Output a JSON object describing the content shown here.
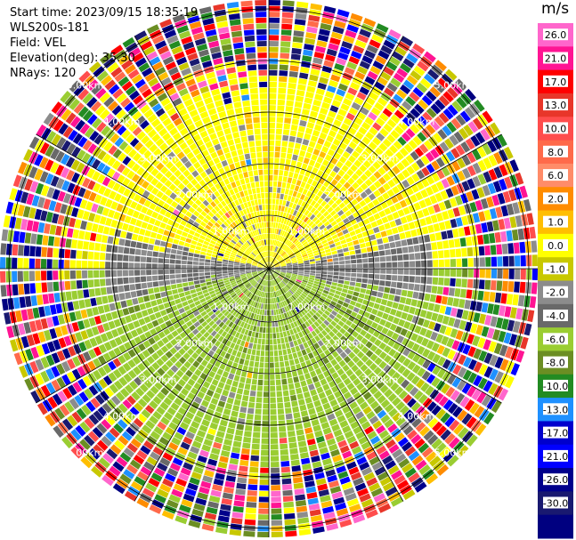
{
  "header": {
    "start_time": "Start time: 2023/09/15 18:35:19",
    "instrument": "WLS200s-181",
    "field": "Field: VEL",
    "elevation": "Elevation(deg): 35.30",
    "nrays": "NRays: 120"
  },
  "chart_data": {
    "type": "heatmap",
    "projection": "polar",
    "field": "VEL",
    "nrays": 120,
    "range_ring_labels": [
      "1.00km",
      "2.00km",
      "3.00km",
      "4.00km",
      "5.00km"
    ],
    "colorbar": {
      "unit": "m/s",
      "ticks": [
        "26.0",
        "21.0",
        "17.0",
        "13.0",
        "10.0",
        "8.0",
        "6.0",
        "2.0",
        "1.0",
        "0.0",
        "-1.0",
        "-2.0",
        "-4.0",
        "-6.0",
        "-8.0",
        "-10.0",
        "-13.0",
        "-17.0",
        "-21.0",
        "-26.0",
        "-30.0"
      ],
      "colors": [
        "#ff66cc",
        "#ff1493",
        "#ff0000",
        "#e8362a",
        "#ff4d4d",
        "#ff6a4a",
        "#ff8c69",
        "#ff8c00",
        "#ffbe00",
        "#ffff00",
        "#c8c800",
        "#8c8c8c",
        "#696969",
        "#9acd32",
        "#6b8e23",
        "#228b22",
        "#1e90ff",
        "#0000cd",
        "#0000ff",
        "#00008b",
        "#191970",
        "#000080"
      ]
    }
  }
}
